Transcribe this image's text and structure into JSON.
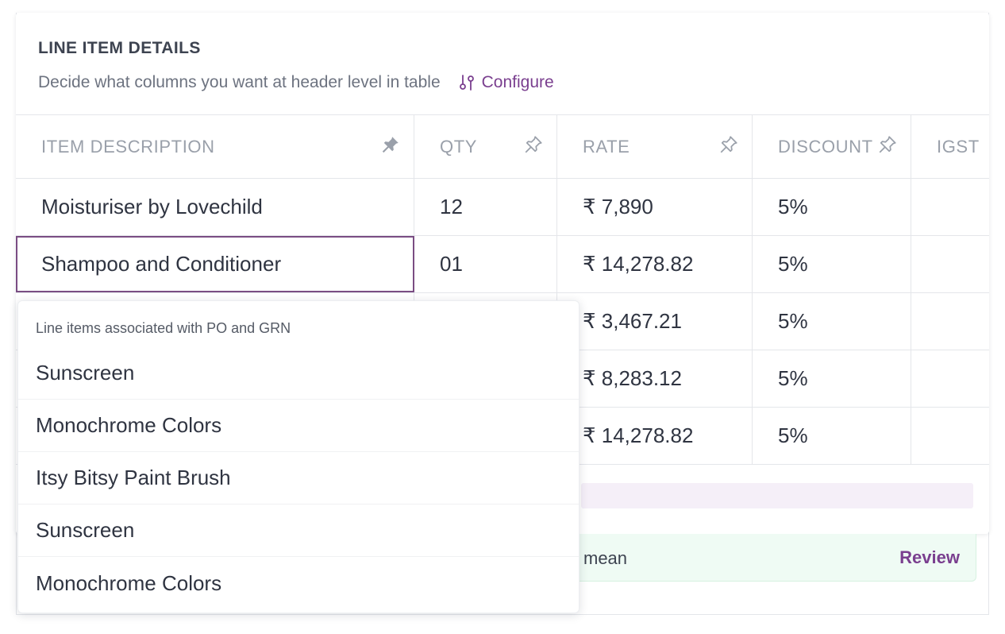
{
  "section": {
    "title": "LINE ITEM DETAILS",
    "subtitle": "Decide what columns you want at header level in table",
    "configure_label": "Configure"
  },
  "table": {
    "columns": [
      "ITEM DESCRIPTION",
      "QTY",
      "RATE",
      "DISCOUNT",
      "IGST"
    ],
    "rows": [
      {
        "item": "Moisturiser by Lovechild",
        "qty": "12",
        "rate": "₹ 7,890",
        "discount": "5%"
      },
      {
        "item": "Shampoo and Conditioner",
        "qty": "01",
        "rate": "₹ 14,278.82",
        "discount": "5%"
      },
      {
        "item": "",
        "qty": "",
        "rate": "₹ 3,467.21",
        "discount": "5%"
      },
      {
        "item": "",
        "qty": "",
        "rate": "₹ 8,283.12",
        "discount": "5%"
      },
      {
        "item": "",
        "qty": "",
        "rate": "₹ 14,278.82",
        "discount": "5%"
      }
    ]
  },
  "dropdown": {
    "header": "Line items associated with PO and GRN",
    "items": [
      "Sunscreen",
      "Monochrome Colors",
      "Itsy Bitsy Paint Brush",
      "Sunscreen",
      "Monochrome Colors"
    ]
  },
  "alert": {
    "text": "mean",
    "action_label": "Review"
  },
  "colors": {
    "accent": "#7a3f8f",
    "border": "#e4e6ea",
    "alert_bg": "#effbf4"
  }
}
